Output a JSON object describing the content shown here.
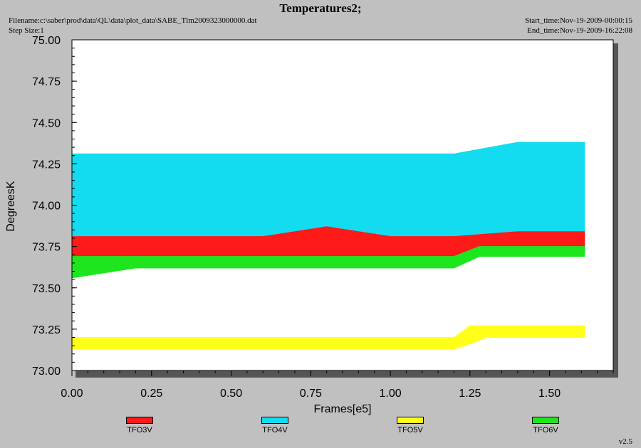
{
  "header": {
    "title": "Temperatures2;",
    "filename": "Filename:c:\\saber\\prod\\data\\QL\\data\\plot_data\\SABE_Tlm2009323000000.dat",
    "step_size": "Step Size:1",
    "start_time": "Start_time:Nov-19-2009-00:00:15",
    "end_time": "End_time:Nov-19-2009-16:22:08"
  },
  "version": "v2.5",
  "colors": {
    "background": "#c0c0c0",
    "plot_area": "#ffffff",
    "TFO3V": "#ff1a1a",
    "TFO4V": "#14dcf0",
    "TFO5V": "#ffff1a",
    "TFO6V": "#1ee61e"
  },
  "chart_data": {
    "type": "line",
    "title": "Temperatures2;",
    "xlabel": "Frames[e5]",
    "ylabel": "DegreesK",
    "xlim": [
      0,
      1.7
    ],
    "ylim": [
      73.0,
      75.0
    ],
    "x_ticks": [
      "0.00",
      "0.25",
      "0.50",
      "0.75",
      "1.00",
      "1.25",
      "1.50"
    ],
    "y_ticks": [
      "73.00",
      "73.25",
      "73.50",
      "73.75",
      "74.00",
      "74.25",
      "74.50",
      "74.75",
      "75.00"
    ],
    "grid": false,
    "legend_position": "bottom",
    "series": [
      {
        "name": "TFO3V",
        "x": [
          0.0,
          0.2,
          0.4,
          0.6,
          0.8,
          1.0,
          1.2,
          1.4,
          1.61
        ],
        "low": [
          73.69,
          73.69,
          73.69,
          73.69,
          73.69,
          73.69,
          73.69,
          73.72,
          73.72
        ],
        "high": [
          73.81,
          73.81,
          73.81,
          73.81,
          73.87,
          73.81,
          73.81,
          73.84,
          73.84
        ]
      },
      {
        "name": "TFO4V",
        "x": [
          0.0,
          0.2,
          0.4,
          0.6,
          0.8,
          1.0,
          1.2,
          1.4,
          1.61
        ],
        "low": [
          73.69,
          73.69,
          73.69,
          73.69,
          73.69,
          73.69,
          73.69,
          73.72,
          73.72
        ],
        "high": [
          74.31,
          74.31,
          74.31,
          74.31,
          74.31,
          74.31,
          74.31,
          74.38,
          74.38
        ]
      },
      {
        "name": "TFO5V",
        "x": [
          0.0,
          0.2,
          0.4,
          0.6,
          0.8,
          1.0,
          1.2,
          1.25,
          1.3,
          1.4,
          1.61
        ],
        "low": [
          73.13,
          73.13,
          73.13,
          73.13,
          73.13,
          73.13,
          73.13,
          73.16,
          73.2,
          73.2,
          73.2
        ],
        "high": [
          73.2,
          73.2,
          73.2,
          73.2,
          73.2,
          73.2,
          73.2,
          73.27,
          73.27,
          73.27,
          73.27
        ]
      },
      {
        "name": "TFO6V",
        "x": [
          0.0,
          0.2,
          0.4,
          0.6,
          0.8,
          1.0,
          1.2,
          1.28,
          1.4,
          1.61
        ],
        "low": [
          73.56,
          73.62,
          73.62,
          73.62,
          73.62,
          73.62,
          73.62,
          73.69,
          73.69,
          73.69
        ],
        "high": [
          73.69,
          73.69,
          73.69,
          73.69,
          73.69,
          73.69,
          73.69,
          73.75,
          73.75,
          73.75
        ]
      }
    ]
  }
}
